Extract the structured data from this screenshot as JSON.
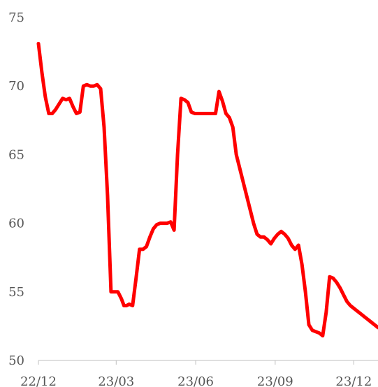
{
  "chart_data": {
    "type": "line",
    "title": "",
    "xlabel": "",
    "ylabel": "",
    "ylim": [
      50,
      75
    ],
    "y_ticks": [
      50,
      55,
      60,
      65,
      70,
      75
    ],
    "x_ticks": [
      {
        "label": "22/12",
        "x": "2022-12"
      },
      {
        "label": "23/03",
        "x": "2023-03"
      },
      {
        "label": "23/06",
        "x": "2023-06"
      },
      {
        "label": "23/09",
        "x": "2023-09"
      },
      {
        "label": "23/12",
        "x": "2023-12"
      }
    ],
    "grid": false,
    "legend": false,
    "color": "#ff0000",
    "series": [
      {
        "x": [
          "2022-12-01",
          "2022-12-05",
          "2022-12-09",
          "2022-12-13",
          "2022-12-17",
          "2022-12-21",
          "2022-12-25",
          "2022-12-29",
          "2023-01-02",
          "2023-01-06",
          "2023-01-10",
          "2023-01-14",
          "2023-01-18",
          "2023-01-22",
          "2023-01-26",
          "2023-01-30",
          "2023-02-03",
          "2023-02-07",
          "2023-02-11",
          "2023-02-15",
          "2023-02-19",
          "2023-02-23",
          "2023-02-27",
          "2023-03-03",
          "2023-03-07",
          "2023-03-10",
          "2023-03-13",
          "2023-03-16",
          "2023-03-20",
          "2023-03-24",
          "2023-03-28",
          "2023-04-01",
          "2023-04-05",
          "2023-04-09",
          "2023-04-13",
          "2023-04-17",
          "2023-04-21",
          "2023-04-25",
          "2023-04-29",
          "2023-05-03",
          "2023-05-07",
          "2023-05-11",
          "2023-05-15",
          "2023-05-19",
          "2023-05-23",
          "2023-05-27",
          "2023-05-31",
          "2023-06-04",
          "2023-06-08",
          "2023-06-12",
          "2023-06-16",
          "2023-06-20",
          "2023-06-24",
          "2023-06-28",
          "2023-07-02",
          "2023-07-06",
          "2023-07-10",
          "2023-07-14",
          "2023-07-18",
          "2023-07-22",
          "2023-07-26",
          "2023-07-30",
          "2023-08-03",
          "2023-08-07",
          "2023-08-11",
          "2023-08-15",
          "2023-08-19",
          "2023-08-23",
          "2023-08-27",
          "2023-08-31",
          "2023-09-04",
          "2023-09-08",
          "2023-09-12",
          "2023-09-16",
          "2023-09-20",
          "2023-09-24",
          "2023-09-28",
          "2023-10-02",
          "2023-10-06",
          "2023-10-10",
          "2023-10-14",
          "2023-10-18",
          "2023-10-22",
          "2023-10-26",
          "2023-10-30",
          "2023-11-03",
          "2023-11-07",
          "2023-11-11",
          "2023-11-15",
          "2023-11-19",
          "2023-11-23",
          "2023-11-27",
          "2023-12-01",
          "2023-12-05",
          "2023-12-09",
          "2023-12-13",
          "2023-12-17",
          "2023-12-21",
          "2023-12-25",
          "2023-12-29"
        ],
        "y": [
          73.1,
          71.0,
          69.2,
          68.0,
          68.0,
          68.3,
          68.7,
          69.1,
          69.0,
          69.1,
          68.5,
          68.0,
          68.1,
          70.0,
          70.1,
          70.0,
          70.0,
          70.1,
          69.8,
          67.0,
          62.0,
          55.0,
          55.0,
          55.0,
          54.5,
          54.0,
          54.0,
          54.1,
          54.0,
          56.0,
          58.1,
          58.1,
          58.3,
          59.0,
          59.6,
          59.9,
          60.0,
          60.0,
          60.0,
          60.1,
          59.5,
          65.0,
          69.1,
          69.0,
          68.8,
          68.1,
          68.0,
          68.0,
          68.0,
          68.0,
          68.0,
          68.0,
          68.0,
          69.6,
          68.9,
          68.0,
          67.7,
          67.0,
          65.0,
          64.0,
          63.0,
          62.0,
          61.0,
          60.0,
          59.2,
          59.0,
          59.0,
          58.8,
          58.5,
          58.9,
          59.2,
          59.4,
          59.2,
          58.9,
          58.4,
          58.1,
          58.4,
          57.0,
          55.0,
          52.6,
          52.2,
          52.1,
          52.0,
          51.8,
          53.5,
          56.1,
          56.0,
          55.7,
          55.3,
          54.8,
          54.3,
          54.0,
          53.8,
          53.6,
          53.4,
          53.2,
          53.0,
          52.8,
          52.6,
          52.4
        ]
      }
    ]
  }
}
